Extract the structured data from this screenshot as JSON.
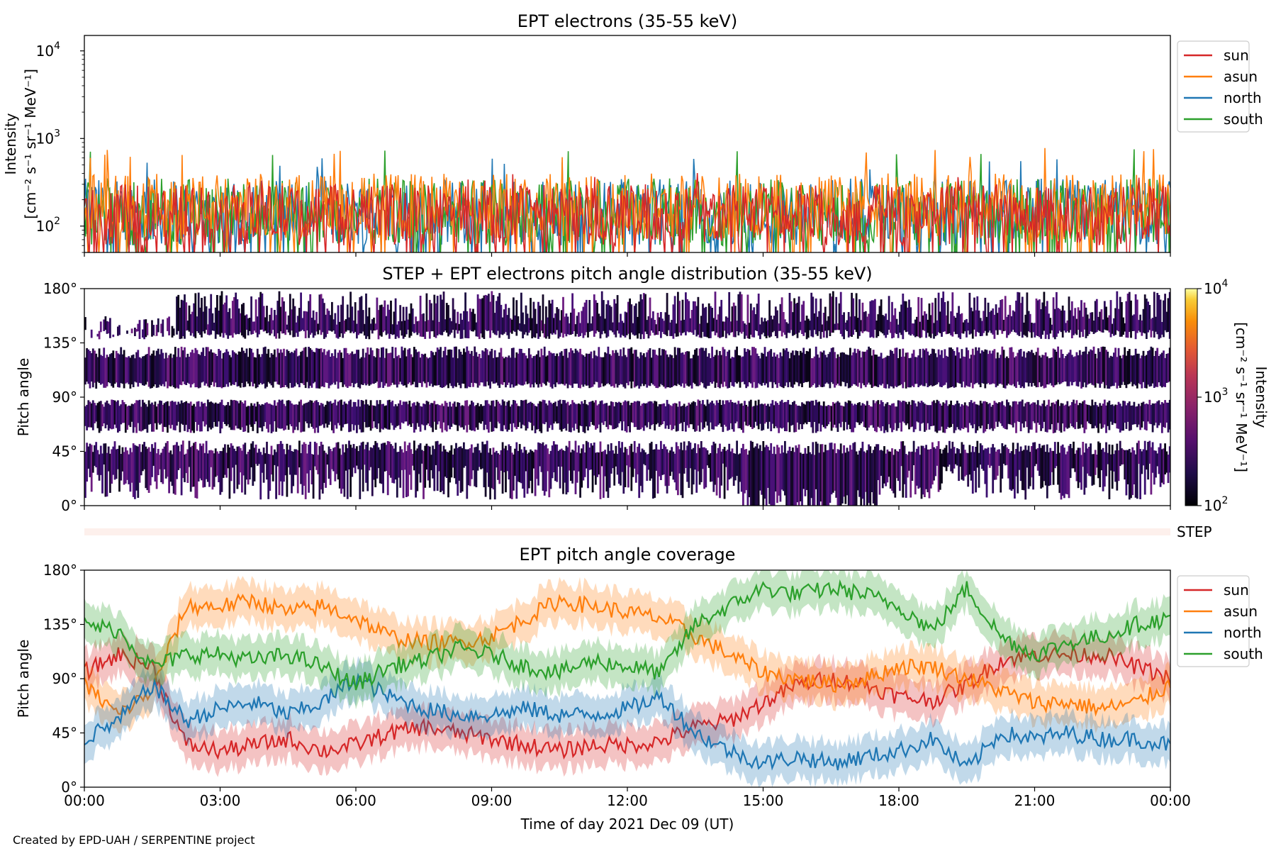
{
  "footer": "Created by EPD-UAH / SERPENTINE project",
  "colors": {
    "sun": "#d62728",
    "asun": "#ff7f0e",
    "north": "#1f77b4",
    "south": "#2ca02c"
  },
  "chart_data": [
    {
      "type": "line",
      "title": "EPT electrons (35-55 keV)",
      "ylabel_line1": "Intensity",
      "ylabel_line2": "[cm⁻² s⁻¹ sr⁻¹ MeV⁻¹]",
      "yscale": "log",
      "ylim": [
        50,
        15000
      ],
      "yticks": [
        {
          "value": 100,
          "base": "10",
          "exp": "2"
        },
        {
          "value": 1000,
          "base": "10",
          "exp": "3"
        },
        {
          "value": 10000,
          "base": "10",
          "exp": "4"
        }
      ],
      "x_range_hours": [
        0,
        24
      ],
      "legend": {
        "placement": "outside-right-top",
        "entries": [
          "sun",
          "asun",
          "north",
          "south"
        ]
      },
      "series": [
        {
          "name": "sun",
          "typical": [
            60,
            300
          ],
          "peak": 450
        },
        {
          "name": "asun",
          "typical": [
            70,
            400
          ],
          "peak": 780
        },
        {
          "name": "north",
          "typical": [
            60,
            350
          ],
          "peak": 600
        },
        {
          "name": "south",
          "typical": [
            60,
            350
          ],
          "peak": 850
        }
      ]
    },
    {
      "type": "heatmap",
      "title": "STEP + EPT electrons pitch angle distribution (35-55 keV)",
      "ylabel": "Pitch angle",
      "ylim": [
        0,
        180
      ],
      "yticks": [
        "0°",
        "45°",
        "90°",
        "135°",
        "180°"
      ],
      "x_range_hours": [
        0,
        24
      ],
      "colorbar": {
        "label_line1": "Intensity",
        "label_line2": "[cm⁻² s⁻¹ sr⁻¹ MeV⁻¹]",
        "scale": "log",
        "range": [
          100,
          10000
        ],
        "ticks": [
          {
            "base": "10",
            "exp": "2"
          },
          {
            "base": "10",
            "exp": "3"
          },
          {
            "base": "10",
            "exp": "4"
          }
        ],
        "colormap": "inferno"
      },
      "step_strip_label": "STEP"
    },
    {
      "type": "line",
      "title": "EPT pitch angle coverage",
      "ylabel": "Pitch angle",
      "xlabel": "Time of day 2021 Dec 09 (UT)",
      "ylim": [
        0,
        180
      ],
      "yticks": [
        "0°",
        "45°",
        "90°",
        "135°",
        "180°"
      ],
      "xticks": [
        "00:00",
        "03:00",
        "06:00",
        "09:00",
        "12:00",
        "15:00",
        "18:00",
        "21:00",
        "00:00"
      ],
      "legend": {
        "placement": "outside-right-top",
        "entries": [
          "sun",
          "asun",
          "north",
          "south"
        ]
      },
      "x": [
        0,
        0.75,
        1.5,
        2.25,
        3,
        3.75,
        4.5,
        5.25,
        6,
        6.75,
        7.5,
        8.25,
        9,
        9.75,
        10.5,
        11.25,
        12,
        12.75,
        13.5,
        14.25,
        15,
        15.75,
        16.5,
        17.25,
        18,
        18.75,
        19.5,
        20.25,
        21,
        21.75,
        22.5,
        23.25,
        24
      ],
      "series": [
        {
          "name": "sun",
          "values": [
            95,
            110,
            100,
            35,
            30,
            35,
            40,
            30,
            35,
            45,
            50,
            45,
            40,
            35,
            30,
            35,
            35,
            38,
            50,
            55,
            70,
            85,
            90,
            85,
            75,
            72,
            85,
            105,
            110,
            110,
            110,
            100,
            90
          ]
        },
        {
          "name": "asun",
          "values": [
            85,
            60,
            80,
            150,
            150,
            155,
            145,
            150,
            140,
            125,
            120,
            120,
            125,
            140,
            155,
            150,
            145,
            140,
            125,
            110,
            95,
            90,
            85,
            90,
            100,
            100,
            90,
            80,
            70,
            70,
            65,
            70,
            85
          ]
        },
        {
          "name": "north",
          "values": [
            40,
            55,
            85,
            55,
            65,
            70,
            60,
            70,
            90,
            75,
            65,
            60,
            60,
            65,
            60,
            60,
            65,
            75,
            45,
            30,
            20,
            25,
            20,
            25,
            30,
            40,
            15,
            45,
            40,
            45,
            40,
            40,
            35
          ]
        },
        {
          "name": "south",
          "values": [
            135,
            130,
            100,
            110,
            110,
            105,
            110,
            100,
            85,
            100,
            105,
            115,
            110,
            100,
            95,
            105,
            100,
            95,
            135,
            150,
            165,
            160,
            165,
            160,
            150,
            130,
            165,
            125,
            110,
            120,
            125,
            135,
            140
          ]
        }
      ]
    }
  ]
}
